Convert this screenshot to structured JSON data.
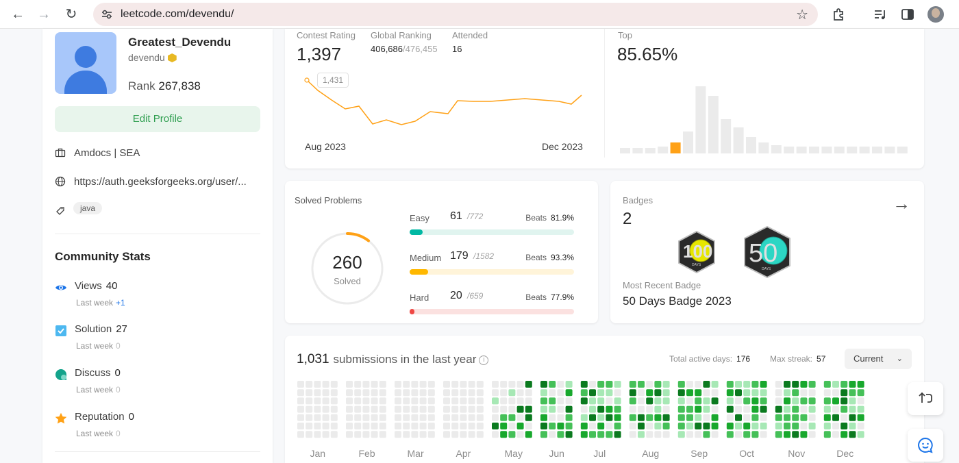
{
  "browser": {
    "url": "leetcode.com/devendu/"
  },
  "profile": {
    "display_name": "Greatest_Devendu",
    "username": "devendu",
    "rank_label": "Rank",
    "rank_value": "267,838",
    "edit_button": "Edit Profile",
    "company": "Amdocs | SEA",
    "website": "https://auth.geeksforgeeks.org/user/...",
    "skill_tag": "java"
  },
  "community": {
    "title": "Community Stats",
    "last_week_label": "Last week",
    "stats": [
      {
        "label": "Views",
        "value": "40",
        "delta": "+1",
        "icon": "eye-icon",
        "color": "#1a73e8"
      },
      {
        "label": "Solution",
        "value": "27",
        "delta": "0",
        "icon": "solution-checkbox-icon",
        "color": "#4db8f0"
      },
      {
        "label": "Discuss",
        "value": "0",
        "delta": "0",
        "icon": "discuss-icon",
        "color": "#14a38b"
      },
      {
        "label": "Reputation",
        "value": "0",
        "delta": "0",
        "icon": "star-icon",
        "color": "#ffa116"
      }
    ]
  },
  "contest": {
    "rating_label": "Contest Rating",
    "rating_value": "1,397",
    "global_label": "Global Ranking",
    "global_value": "406,686",
    "global_total": "/476,455",
    "attended_label": "Attended",
    "attended_value": "16",
    "top_label": "Top",
    "top_value": "85.65%",
    "tooltip": "1,431",
    "start_label": "Aug 2023",
    "end_label": "Dec 2023"
  },
  "solved": {
    "title": "Solved Problems",
    "total": "260",
    "total_label": "Solved",
    "beats_label": "Beats",
    "difficulties": [
      {
        "name": "Easy",
        "solved": "61",
        "total": "/772",
        "beats": "81.9%",
        "fraction": 0.079,
        "color": "#00b8a3",
        "track": "#e0f4ef"
      },
      {
        "name": "Medium",
        "solved": "179",
        "total": "/1582",
        "beats": "93.3%",
        "fraction": 0.113,
        "color": "#ffb800",
        "track": "#fff4d9"
      },
      {
        "name": "Hard",
        "solved": "20",
        "total": "/659",
        "beats": "77.9%",
        "fraction": 0.03,
        "color": "#ef4743",
        "track": "#fbe1e0"
      }
    ]
  },
  "badges": {
    "label": "Badges",
    "count": "2",
    "recent_label": "Most Recent Badge",
    "recent_value": "50 Days Badge 2023",
    "items": [
      {
        "number": "100",
        "caption": "DAYS",
        "accent": "#e6e600"
      },
      {
        "number": "50",
        "caption": "DAYS",
        "accent": "#2cd6c4"
      }
    ]
  },
  "submissions": {
    "count": "1,031",
    "text": "submissions in the last year",
    "active_label": "Total active days:",
    "active_value": "176",
    "streak_label": "Max streak:",
    "streak_value": "57",
    "year_select": "Current",
    "months": [
      "Jan",
      "Feb",
      "Mar",
      "Apr",
      "May",
      "Jun",
      "Jul",
      "Aug",
      "Sep",
      "Oct",
      "Nov",
      "Dec"
    ]
  },
  "colors": {
    "accent_orange": "#ffa116",
    "edit_green": "#2e9e4f",
    "heat_levels": [
      "#ebebeb",
      "#a7e8b5",
      "#45c058",
      "#18a82d",
      "#0b7a1f"
    ]
  }
}
